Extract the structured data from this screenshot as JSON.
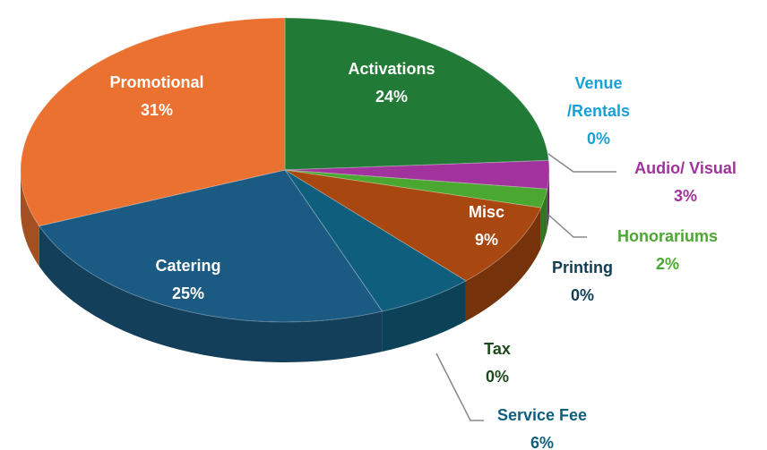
{
  "chart_data": {
    "type": "pie",
    "categories": [
      "Activations",
      "Venue /Rentals",
      "Audio/ Visual",
      "Honorariums",
      "Misc",
      "Printing",
      "Tax",
      "Service Fee",
      "Catering",
      "Promotional"
    ],
    "values": [
      24,
      0,
      3,
      2,
      9,
      0,
      0,
      6,
      25,
      31
    ],
    "value_labels": [
      "24%",
      "0%",
      "3%",
      "2%",
      "9%",
      "0%",
      "0%",
      "6%",
      "25%",
      "31%"
    ],
    "colors": [
      "#217a35",
      "#1aa0d8",
      "#a2339c",
      "#4aa72f",
      "#a8470f",
      "#123c50",
      "#1c4a1c",
      "#0f5e7d",
      "#1b5a82",
      "#ea7130"
    ]
  }
}
